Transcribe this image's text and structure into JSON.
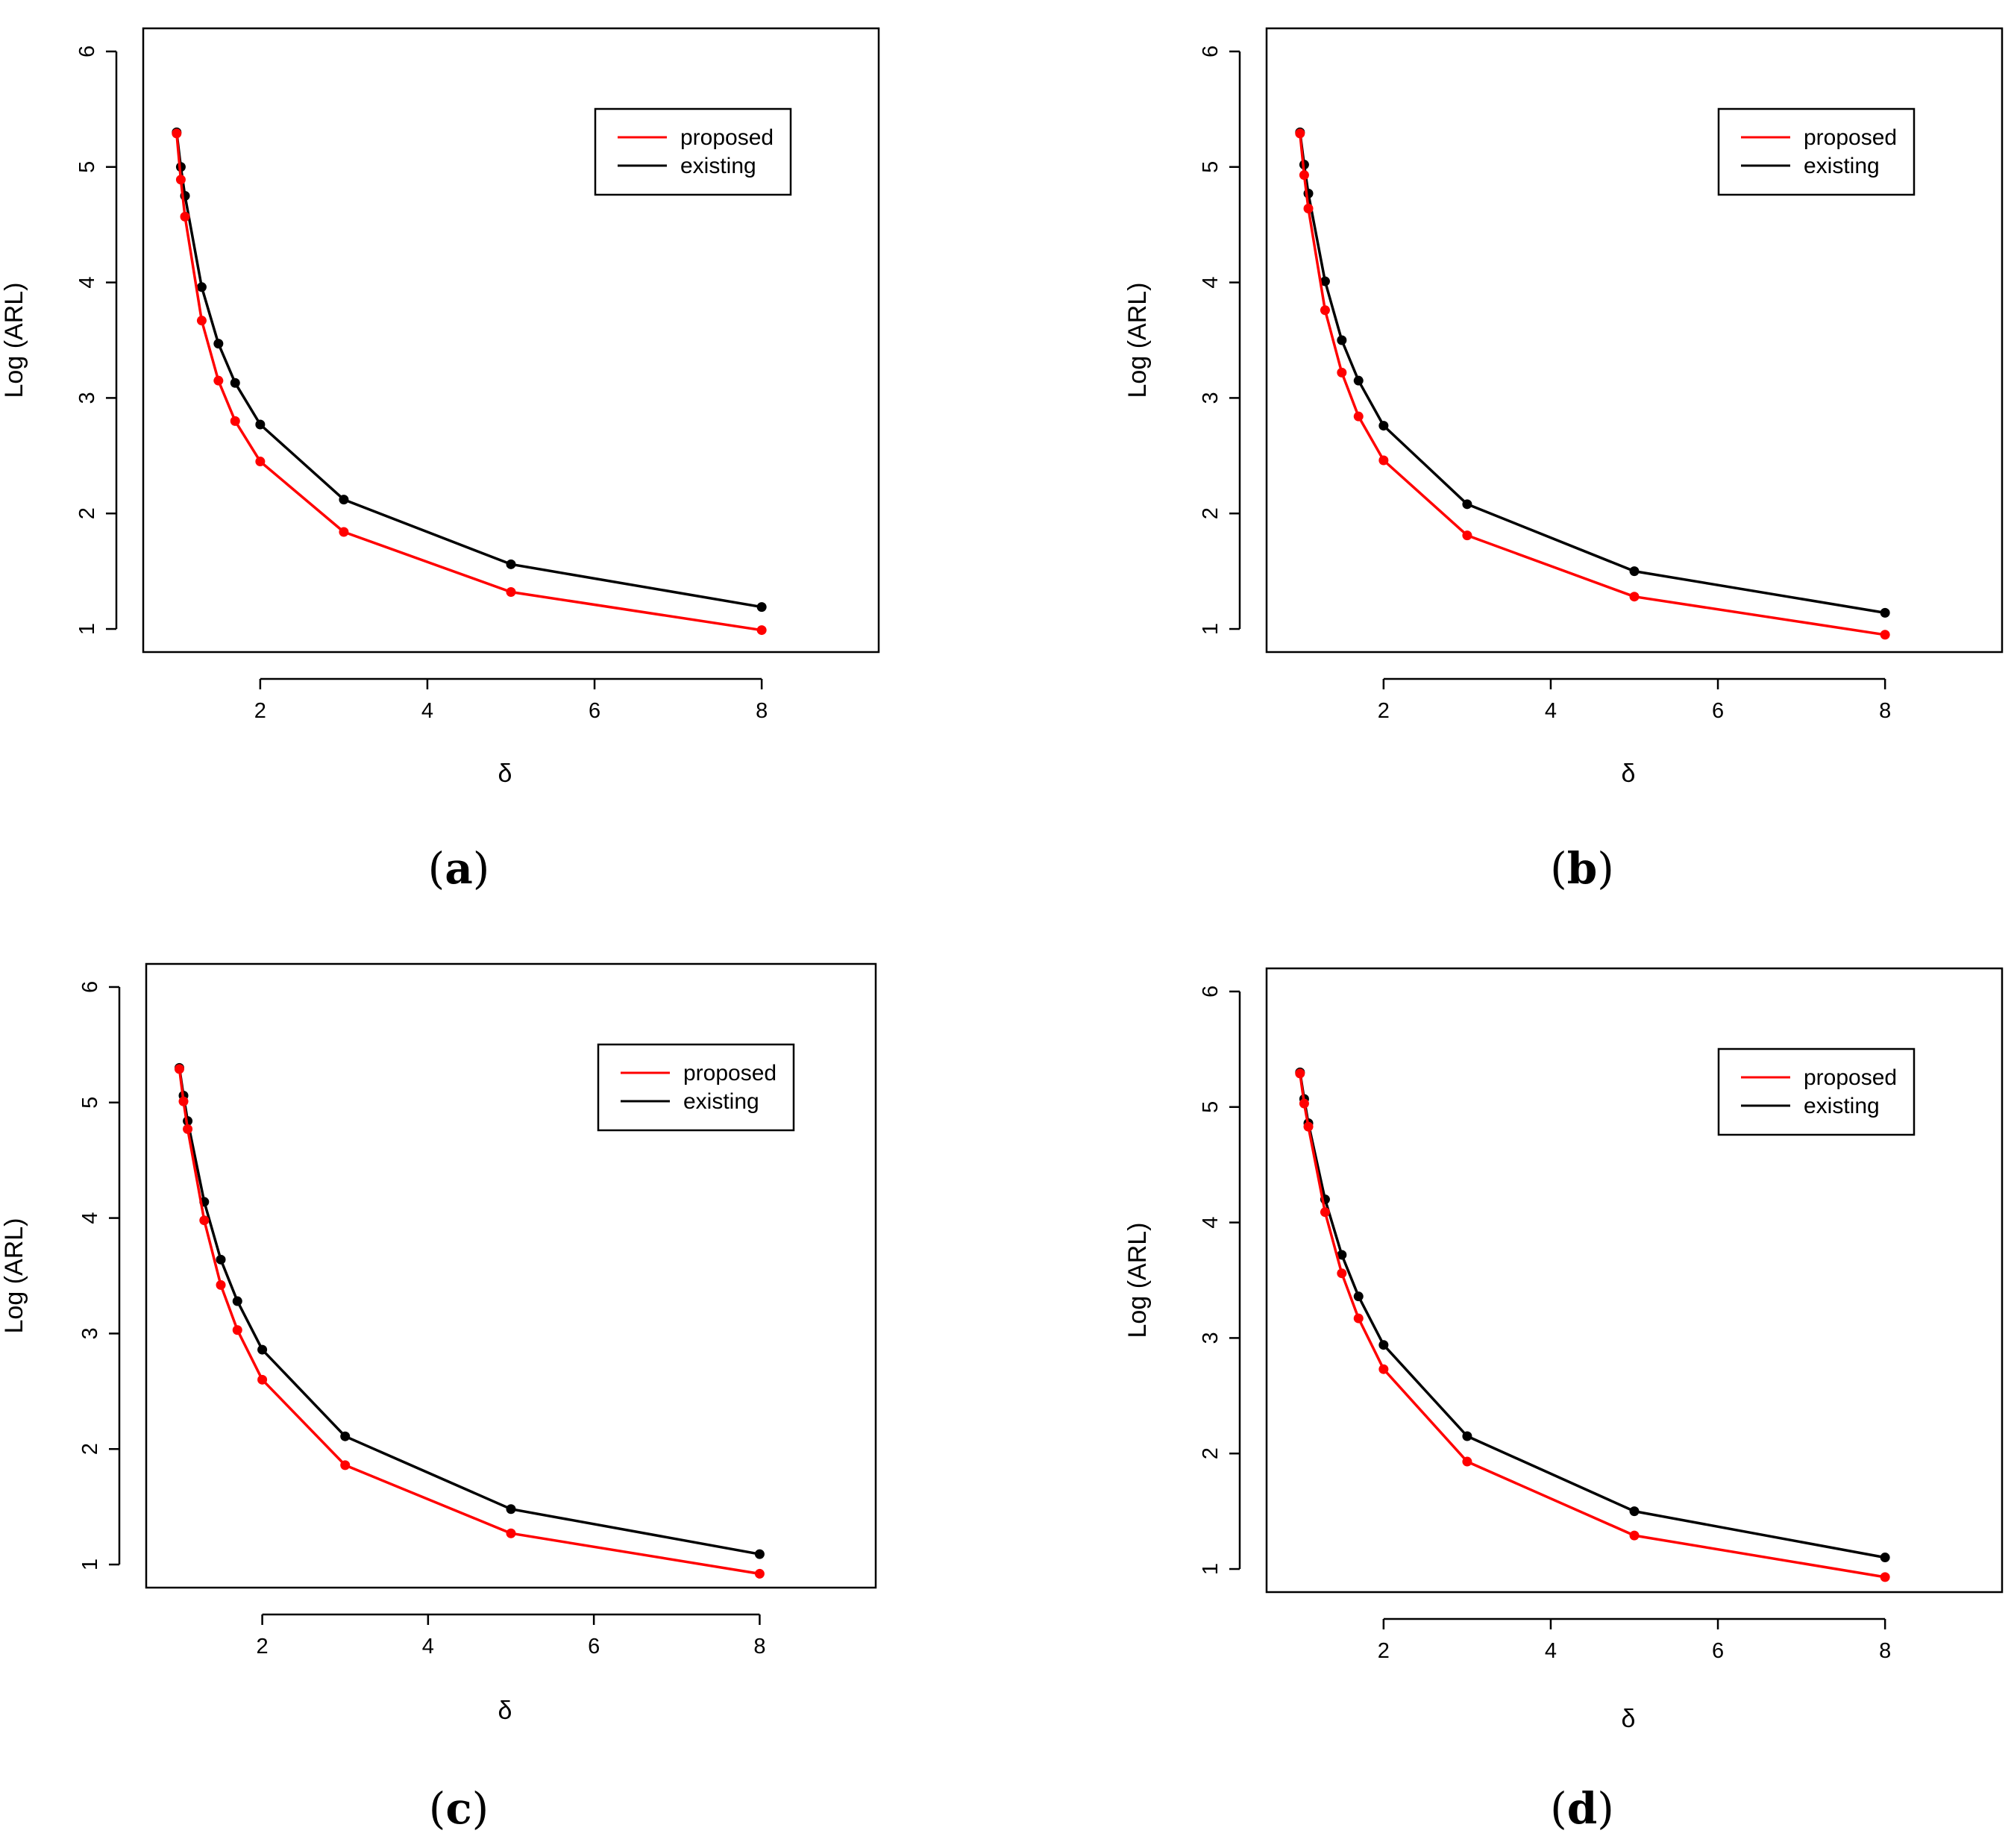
{
  "chart_data": [
    {
      "type": "line",
      "caption": "a",
      "xlabel": "δ",
      "ylabel": "Log (ARL)",
      "xticks": [
        2,
        4,
        6,
        8
      ],
      "yticks": [
        1,
        2,
        3,
        4,
        5,
        6
      ],
      "xlim": [
        0.6,
        9.4
      ],
      "ylim": [
        0.8,
        6.2
      ],
      "legend": {
        "position": "top-right"
      },
      "x": [
        1.0,
        1.05,
        1.1,
        1.3,
        1.5,
        1.7,
        2.0,
        3.0,
        5.0,
        8.0
      ],
      "series": [
        {
          "name": "proposed",
          "color": "#ff0000",
          "values": [
            5.29,
            4.89,
            4.57,
            3.67,
            3.15,
            2.8,
            2.45,
            1.84,
            1.32,
            0.99
          ]
        },
        {
          "name": "existing",
          "color": "#000000",
          "values": [
            5.3,
            5.0,
            4.75,
            3.96,
            3.47,
            3.13,
            2.77,
            2.12,
            1.56,
            1.19
          ]
        }
      ]
    },
    {
      "type": "line",
      "caption": "b",
      "xlabel": "δ",
      "ylabel": "Log (ARL)",
      "xticks": [
        2,
        4,
        6,
        8
      ],
      "yticks": [
        1,
        2,
        3,
        4,
        5,
        6
      ],
      "xlim": [
        0.6,
        9.4
      ],
      "ylim": [
        0.8,
        6.2
      ],
      "legend": {
        "position": "top-right"
      },
      "x": [
        1.0,
        1.05,
        1.1,
        1.3,
        1.5,
        1.7,
        2.0,
        3.0,
        5.0,
        8.0
      ],
      "series": [
        {
          "name": "proposed",
          "color": "#ff0000",
          "values": [
            5.29,
            4.93,
            4.64,
            3.76,
            3.22,
            2.84,
            2.46,
            1.81,
            1.28,
            0.95
          ]
        },
        {
          "name": "existing",
          "color": "#000000",
          "values": [
            5.3,
            5.02,
            4.77,
            4.01,
            3.5,
            3.15,
            2.76,
            2.08,
            1.5,
            1.14
          ]
        }
      ]
    },
    {
      "type": "line",
      "caption": "c",
      "xlabel": "δ",
      "ylabel": "Log (ARL)",
      "xticks": [
        2,
        4,
        6,
        8
      ],
      "yticks": [
        1,
        2,
        3,
        4,
        5,
        6
      ],
      "xlim": [
        0.6,
        9.4
      ],
      "ylim": [
        0.8,
        6.2
      ],
      "legend": {
        "position": "top-right"
      },
      "x": [
        1.0,
        1.05,
        1.1,
        1.3,
        1.5,
        1.7,
        2.0,
        3.0,
        5.0,
        8.0
      ],
      "series": [
        {
          "name": "proposed",
          "color": "#ff0000",
          "values": [
            5.29,
            5.01,
            4.77,
            3.98,
            3.42,
            3.03,
            2.6,
            1.86,
            1.27,
            0.92
          ]
        },
        {
          "name": "existing",
          "color": "#000000",
          "values": [
            5.3,
            5.06,
            4.84,
            4.14,
            3.64,
            3.28,
            2.86,
            2.11,
            1.48,
            1.09
          ]
        }
      ]
    },
    {
      "type": "line",
      "caption": "d",
      "xlabel": "δ",
      "ylabel": "Log (ARL)",
      "xticks": [
        2,
        4,
        6,
        8
      ],
      "yticks": [
        1,
        2,
        3,
        4,
        5,
        6
      ],
      "xlim": [
        0.6,
        9.4
      ],
      "ylim": [
        0.8,
        6.2
      ],
      "legend": {
        "position": "top-right"
      },
      "x": [
        1.0,
        1.05,
        1.1,
        1.3,
        1.5,
        1.7,
        2.0,
        3.0,
        5.0,
        8.0
      ],
      "series": [
        {
          "name": "proposed",
          "color": "#ff0000",
          "values": [
            5.29,
            5.03,
            4.83,
            4.09,
            3.56,
            3.17,
            2.73,
            1.93,
            1.29,
            0.93
          ]
        },
        {
          "name": "existing",
          "color": "#000000",
          "values": [
            5.3,
            5.07,
            4.86,
            4.2,
            3.72,
            3.36,
            2.94,
            2.15,
            1.5,
            1.1
          ]
        }
      ]
    }
  ]
}
